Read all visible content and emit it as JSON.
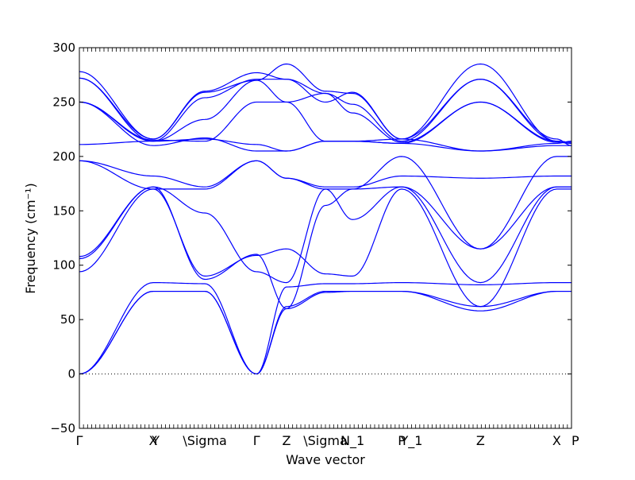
{
  "chart_data": {
    "type": "line",
    "title": "",
    "xlabel": "Wave vector",
    "ylabel": "Frequency (cm⁻¹)",
    "ylim": [
      -50,
      300
    ],
    "yticks": [
      -50,
      0,
      50,
      100,
      150,
      200,
      250,
      300
    ],
    "xlim": [
      0,
      1
    ],
    "grid": false,
    "zero_line": {
      "y": 0,
      "style": "dotted"
    },
    "line_color": "#0000ff",
    "high_symmetry_points": [
      {
        "label": "Γ",
        "x": 0.0
      },
      {
        "label": "X",
        "x": 0.15
      },
      {
        "label": "Y",
        "x": 0.155
      },
      {
        "label": "\\Sigma",
        "x": 0.255
      },
      {
        "label": "Γ",
        "x": 0.36
      },
      {
        "label": "Z",
        "x": 0.421
      },
      {
        "label": "\\Sigma",
        "x": 0.5
      },
      {
        "label": "N_1",
        "x": 0.555
      },
      {
        "label": "P",
        "x": 0.655
      },
      {
        "label": "Y_1",
        "x": 0.675
      },
      {
        "label": "Z",
        "x": 0.815
      },
      {
        "label": "X",
        "x": 0.97
      },
      {
        "label": "P",
        "x": 1.0
      }
    ],
    "series": [
      {
        "x": [
          0,
          0.15,
          0.255,
          0.36,
          0.421,
          0.5,
          0.555,
          0.655,
          0.815,
          0.97,
          1.0
        ],
        "y": [
          0,
          76,
          76,
          0,
          60,
          75,
          76,
          76,
          58,
          76,
          76
        ]
      },
      {
        "x": [
          0,
          0.15,
          0.255,
          0.36,
          0.421,
          0.5,
          0.555,
          0.655,
          0.815,
          0.97,
          1.0
        ],
        "y": [
          0,
          76,
          76,
          0,
          62,
          76,
          76,
          76,
          62,
          76,
          76
        ]
      },
      {
        "x": [
          0,
          0.15,
          0.255,
          0.36,
          0.421,
          0.5,
          0.555,
          0.655,
          0.815,
          0.97,
          1.0
        ],
        "y": [
          0,
          84,
          83,
          0,
          80,
          83,
          83,
          84,
          82,
          84,
          84
        ]
      },
      {
        "x": [
          0,
          0.15,
          0.255,
          0.36,
          0.421,
          0.5,
          0.555,
          0.655,
          0.815,
          0.97,
          1.0
        ],
        "y": [
          94,
          170,
          90,
          109,
          115,
          92,
          90,
          170,
          62,
          170,
          170
        ]
      },
      {
        "x": [
          0,
          0.15,
          0.255,
          0.36,
          0.421,
          0.5,
          0.555,
          0.655,
          0.815,
          0.97,
          1.0
        ],
        "y": [
          106,
          172,
          87,
          110,
          60,
          155,
          170,
          172,
          115,
          172,
          172
        ]
      },
      {
        "x": [
          0,
          0.15,
          0.255,
          0.36,
          0.421,
          0.5,
          0.555,
          0.655,
          0.815,
          0.97,
          1.0
        ],
        "y": [
          108,
          172,
          148,
          94,
          84,
          170,
          142,
          172,
          84,
          172,
          172
        ]
      },
      {
        "x": [
          0,
          0.15,
          0.255,
          0.36,
          0.421,
          0.5,
          0.555,
          0.655,
          0.815,
          0.97,
          1.0
        ],
        "y": [
          196,
          170,
          170,
          196,
          180,
          170,
          170,
          200,
          115,
          200,
          200
        ]
      },
      {
        "x": [
          0,
          0.15,
          0.255,
          0.36,
          0.421,
          0.5,
          0.555,
          0.655,
          0.815,
          0.97,
          1.0
        ],
        "y": [
          196,
          182,
          172,
          196,
          180,
          172,
          172,
          182,
          180,
          182,
          182
        ]
      },
      {
        "x": [
          0,
          0.15,
          0.255,
          0.36,
          0.421,
          0.5,
          0.555,
          0.655,
          0.815,
          0.97,
          1.0
        ],
        "y": [
          211,
          214,
          216,
          211,
          205,
          214,
          214,
          212,
          205,
          212,
          214
        ]
      },
      {
        "x": [
          0,
          0.15,
          0.255,
          0.36,
          0.421,
          0.5,
          0.555,
          0.655,
          0.815,
          0.97,
          1.0
        ],
        "y": [
          250,
          215,
          214,
          250,
          250,
          214,
          214,
          212,
          250,
          214,
          213
        ]
      },
      {
        "x": [
          0,
          0.15,
          0.255,
          0.36,
          0.421,
          0.5,
          0.555,
          0.655,
          0.815,
          0.97,
          1.0
        ],
        "y": [
          250,
          214,
          234,
          270,
          250,
          258,
          240,
          213,
          250,
          213,
          212
        ]
      },
      {
        "x": [
          0,
          0.15,
          0.255,
          0.36,
          0.421,
          0.5,
          0.555,
          0.655,
          0.815,
          0.97,
          1.0
        ],
        "y": [
          272,
          214,
          254,
          271,
          271,
          258,
          248,
          214,
          271,
          214,
          213
        ]
      },
      {
        "x": [
          0,
          0.15,
          0.255,
          0.36,
          0.421,
          0.5,
          0.555,
          0.655,
          0.815,
          0.97,
          1.0
        ],
        "y": [
          272,
          216,
          259,
          270,
          285,
          260,
          258,
          216,
          285,
          214,
          213
        ]
      },
      {
        "x": [
          0,
          0.15,
          0.255,
          0.36,
          0.421,
          0.5,
          0.555,
          0.655,
          0.815,
          0.97,
          1.0
        ],
        "y": [
          278,
          216,
          260,
          277,
          271,
          250,
          259,
          216,
          271,
          216,
          210
        ]
      },
      {
        "x": [
          0,
          0.15,
          0.255,
          0.36,
          0.421,
          0.5,
          0.555,
          0.655,
          0.815,
          0.97,
          1.0
        ],
        "y": [
          250,
          210,
          217,
          205,
          205,
          214,
          214,
          216,
          205,
          210,
          210
        ]
      }
    ]
  }
}
